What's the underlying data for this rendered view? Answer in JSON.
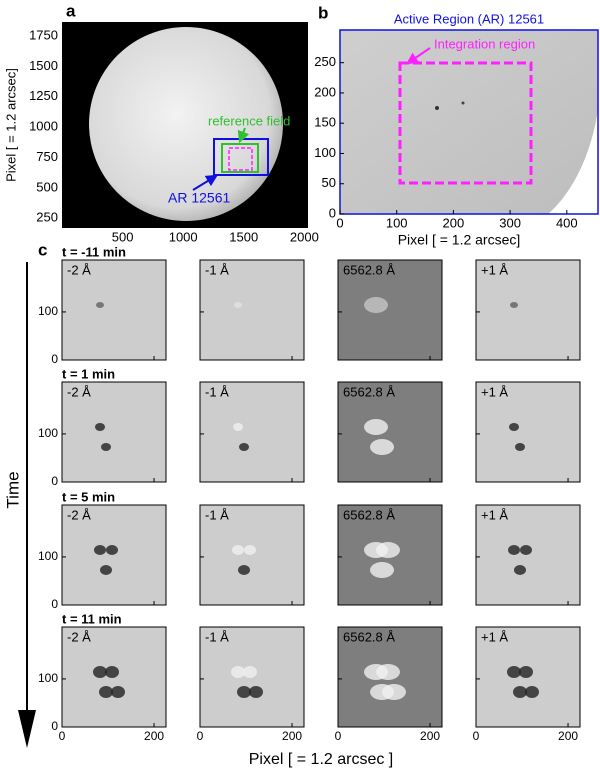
{
  "panel_a": {
    "label": "a",
    "ylabel": "Pixel [ = 1.2 arcsec]",
    "xlim": [
      0,
      2030
    ],
    "ylim": [
      170,
      1865
    ],
    "xticks": [
      500,
      1000,
      1500,
      2000
    ],
    "yticks": [
      250,
      500,
      750,
      1000,
      1250,
      1500,
      1750
    ],
    "reference_label": "reference field",
    "ar_label": "AR 12561"
  },
  "panel_b": {
    "label": "b",
    "title": "Active Region (AR) 12561",
    "xlabel": "Pixel [ = 1.2 arcsec]",
    "xlim": [
      0,
      455
    ],
    "ylim": [
      0,
      304
    ],
    "xticks": [
      0,
      100,
      200,
      300,
      400
    ],
    "yticks": [
      0,
      50,
      100,
      150,
      200,
      250
    ],
    "annotation": "Integration region"
  },
  "panel_c": {
    "label": "c",
    "ylabel": "Time",
    "xlabel": "Pixel [ = 1.2 arcsec ]",
    "xlim": [
      0,
      226
    ],
    "ylim": [
      0,
      208
    ],
    "xticks": [
      0,
      200
    ],
    "yticks": [
      0,
      100
    ],
    "times": [
      "t = -11 min",
      "t = 1 min",
      "t = 5 min",
      "t = 11 min"
    ],
    "wavelengths": [
      "-2 Å",
      "-1 Å",
      "6562.8 Å",
      "+1 Å"
    ]
  }
}
